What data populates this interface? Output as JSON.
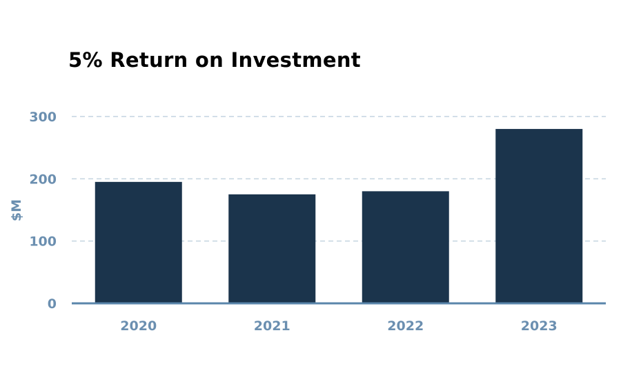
{
  "chart_data": {
    "type": "bar",
    "title": "5% Return on Investment",
    "xlabel": "",
    "ylabel": "$M",
    "categories": [
      "2020",
      "2021",
      "2022",
      "2023"
    ],
    "values": [
      195,
      175,
      180,
      280
    ],
    "ylim": [
      0,
      300
    ],
    "yticks": [
      "0",
      "100",
      "200",
      "300"
    ],
    "grid": true,
    "legend": "none"
  },
  "colors": {
    "bar": "#1b344c",
    "axis": "#5a86ab",
    "grid": "#c4d4e0",
    "label": "#6b8fb0",
    "title": "#000000"
  }
}
